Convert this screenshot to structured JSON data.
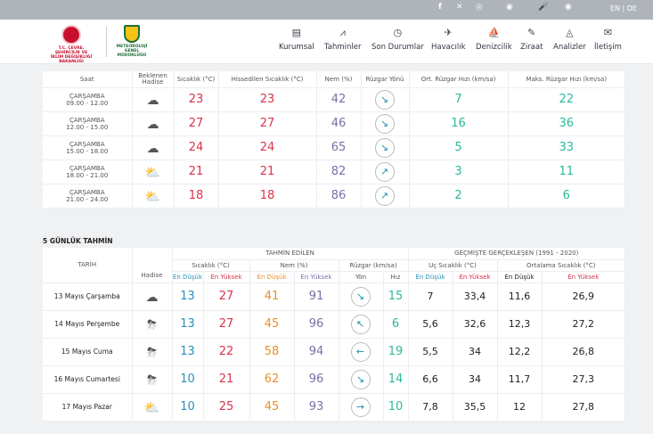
{
  "topbar": {
    "icons": [
      "facebook-icon",
      "x-icon",
      "sensor-icon",
      "location-icon",
      "microphone-icon",
      "eye-icon"
    ],
    "lang": "EN | DE"
  },
  "logos": {
    "ministry": "T.C. ÇEVRE, ŞEHİRCİLİK VE İKLİM DEĞİŞİKLİĞİ BAKANLIĞI",
    "mgm": "METEOROLOJİ GENEL MÜDÜRLÜĞÜ"
  },
  "nav": [
    {
      "label": "Kurumsal",
      "icon": "document-icon"
    },
    {
      "label": "Tahminler",
      "icon": "chart-icon"
    },
    {
      "label": "Son Durumlar",
      "icon": "clock-icon"
    },
    {
      "label": "Havacılık",
      "icon": "plane-icon"
    },
    {
      "label": "Denizcilik",
      "icon": "ship-icon"
    },
    {
      "label": "Ziraat",
      "icon": "leaf-icon"
    },
    {
      "label": "Analizler",
      "icon": "analysis-icon"
    },
    {
      "label": "İletişim",
      "icon": "mail-icon"
    }
  ],
  "hourly": {
    "headers": [
      "Saat",
      "Beklenen Hadise",
      "Sıcaklık (°C)",
      "Hissedilen Sıcaklık (°C)",
      "Nem (%)",
      "Rüzgar Yönü",
      "Ort. Rüzgar Hızı (km/sa)",
      "Maks. Rüzgar Hızı (km/sa)"
    ],
    "rows": [
      {
        "day": "ÇARŞAMBA",
        "time": "09.00 - 12.00",
        "icon": "cloud-icon",
        "temp": "23",
        "feels": "23",
        "hum": "42",
        "dir": "↘",
        "avg": "7",
        "max": "22"
      },
      {
        "day": "ÇARŞAMBA",
        "time": "12.00 - 15.00",
        "icon": "cloud-icon",
        "temp": "27",
        "feels": "27",
        "hum": "46",
        "dir": "↘",
        "avg": "16",
        "max": "36"
      },
      {
        "day": "ÇARŞAMBA",
        "time": "15.00 - 18.00",
        "icon": "cloud-icon",
        "temp": "24",
        "feels": "24",
        "hum": "65",
        "dir": "↘",
        "avg": "5",
        "max": "33"
      },
      {
        "day": "ÇARŞAMBA",
        "time": "18.00 - 21.00",
        "icon": "sun-cloud-icon",
        "temp": "21",
        "feels": "21",
        "hum": "82",
        "dir": "↗",
        "avg": "3",
        "max": "11"
      },
      {
        "day": "ÇARŞAMBA",
        "time": "21.00 - 24.00",
        "icon": "sun-cloud-icon",
        "temp": "18",
        "feels": "18",
        "hum": "86",
        "dir": "↗",
        "avg": "2",
        "max": "6"
      }
    ]
  },
  "five_day": {
    "title": "5 GÜNLÜK TAHMİN",
    "group_forecast": "TAHMİN EDİLEN",
    "group_past": "GEÇMİŞTE GERÇEKLEŞEN (1991 - 2020)",
    "col_date": "TARİH",
    "col_event": "Hadise",
    "col_temp": "Sıcaklık (°C)",
    "col_hum": "Nem (%)",
    "col_wind": "Rüzgar (km/sa)",
    "col_extreme": "Uç Sıcaklık (°C)",
    "col_mean": "Ortalama Sıcaklık (°C)",
    "lo": "En Düşük",
    "hi": "En Yüksek",
    "dir": "Yön",
    "speed": "Hız",
    "rows": [
      {
        "date": "13 Mayıs Çarşamba",
        "icon": "cloud-icon",
        "tlo": "13",
        "thi": "27",
        "hlo": "41",
        "hhi": "91",
        "dir": "↘",
        "spd": "15",
        "xlo": "7",
        "xhi": "33,4",
        "mlo": "11,6",
        "mhi": "26,9"
      },
      {
        "date": "14 Mayıs Perşembe",
        "icon": "thunderstorm-icon",
        "tlo": "13",
        "thi": "27",
        "hlo": "45",
        "hhi": "96",
        "dir": "↖",
        "spd": "6",
        "xlo": "5,6",
        "xhi": "32,6",
        "mlo": "12,3",
        "mhi": "27,2"
      },
      {
        "date": "15 Mayıs Cuma",
        "icon": "thunderstorm-icon",
        "tlo": "13",
        "thi": "22",
        "hlo": "58",
        "hhi": "94",
        "dir": "←",
        "spd": "19",
        "xlo": "5,5",
        "xhi": "34",
        "mlo": "12,2",
        "mhi": "26,8"
      },
      {
        "date": "16 Mayıs Cumartesi",
        "icon": "thunderstorm-icon",
        "tlo": "10",
        "thi": "21",
        "hlo": "62",
        "hhi": "96",
        "dir": "↘",
        "spd": "14",
        "xlo": "6,6",
        "xhi": "34",
        "mlo": "11,7",
        "mhi": "27,3"
      },
      {
        "date": "17 Mayıs Pazar",
        "icon": "sun-cloud-icon",
        "tlo": "10",
        "thi": "25",
        "hlo": "45",
        "hhi": "93",
        "dir": "→",
        "spd": "10",
        "xlo": "7,8",
        "xhi": "35,5",
        "mlo": "12",
        "mhi": "27,8"
      }
    ]
  }
}
